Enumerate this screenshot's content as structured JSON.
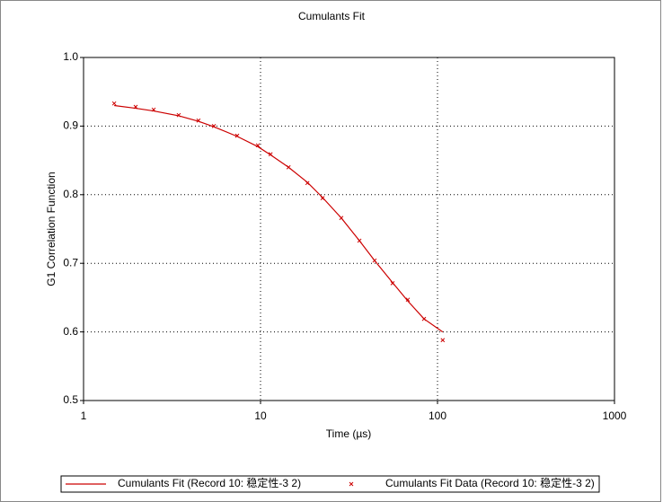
{
  "chart_data": {
    "type": "line",
    "title": "Cumulants Fit",
    "x_label": "Time (µs)",
    "y_label": "G1 Correlation Function",
    "x_scale": "log",
    "grid": true,
    "legend": "bottom",
    "xlim": [
      1,
      1000
    ],
    "xticks": [
      1,
      10,
      100,
      1000
    ],
    "ylim": [
      0.5,
      1
    ],
    "yticks": [
      0.5,
      0.6,
      0.7,
      0.8,
      0.9,
      {
        "value": 1,
        "label": "1.0"
      }
    ],
    "x": [
      1.49,
      1.97,
      2.49,
      3.45,
      4.46,
      5.45,
      7.38,
      9.66,
      11.4,
      14.4,
      18.4,
      22.4,
      28.6,
      36.2,
      44.1,
      55.7,
      68.0,
      83.9,
      107
    ],
    "series": [
      {
        "name": "Cumulants Fit (Record 10: 稳定性-3 2)",
        "color": "#cc0000",
        "style": "line",
        "values": [
          0.93,
          0.926,
          0.922,
          0.915,
          0.907,
          0.899,
          0.885,
          0.87,
          0.858,
          0.84,
          0.818,
          0.796,
          0.766,
          0.733,
          0.704,
          0.672,
          0.645,
          0.619,
          0.6
        ]
      },
      {
        "name": "Cumulants Fit Data (Record 10: 稳定性-3 2)",
        "color": "#cc0000",
        "style": "marker",
        "values": [
          0.933,
          0.928,
          0.924,
          0.916,
          0.908,
          0.9,
          0.886,
          0.872,
          0.859,
          0.84,
          0.817,
          0.795,
          0.766,
          0.733,
          0.704,
          0.671,
          0.647,
          0.619,
          0.588
        ]
      }
    ]
  }
}
